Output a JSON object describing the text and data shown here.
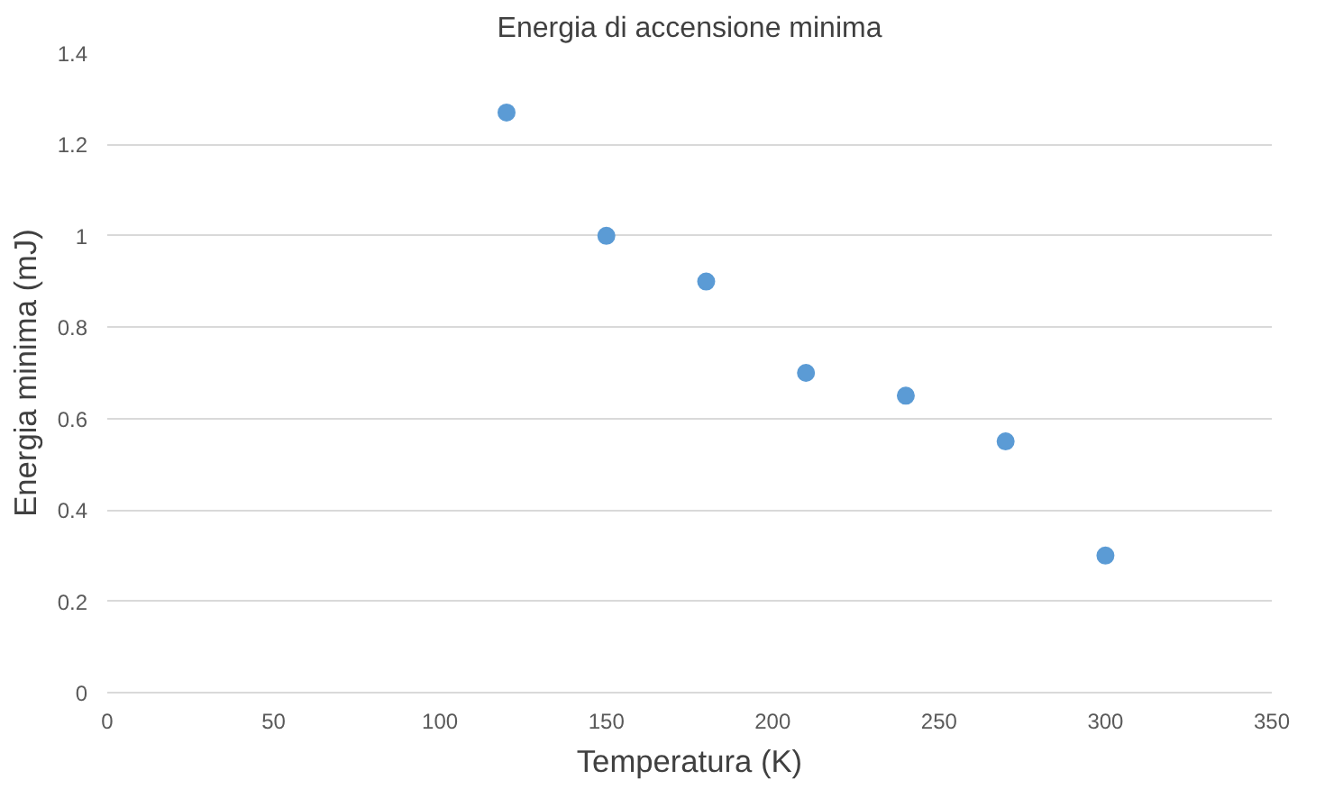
{
  "chart_data": {
    "type": "scatter",
    "title": "Energia di accensione minima",
    "xlabel": "Temperatura (K)",
    "ylabel": "Energia minima (mJ)",
    "x": [
      120,
      150,
      180,
      210,
      240,
      270,
      300
    ],
    "series": [
      {
        "color": "#5b9bd5",
        "values": [
          1.27,
          1.0,
          0.9,
          0.7,
          0.65,
          0.55,
          0.3
        ]
      }
    ],
    "xlim": [
      0,
      350
    ],
    "xticks": [
      0,
      50,
      100,
      150,
      200,
      250,
      300,
      350
    ],
    "ylim": [
      0,
      1.4
    ],
    "yticks": [
      0,
      {
        "value": 0.2,
        "label": "0.2"
      },
      {
        "value": 0.4,
        "label": "0.4"
      },
      {
        "value": 0.6,
        "label": "0.6"
      },
      {
        "value": 0.8,
        "label": "0.8"
      },
      1,
      {
        "value": 1.2,
        "label": "1.2"
      },
      {
        "value": 1.4,
        "label": "1.4"
      }
    ],
    "grid": "y",
    "marker": "circle"
  }
}
